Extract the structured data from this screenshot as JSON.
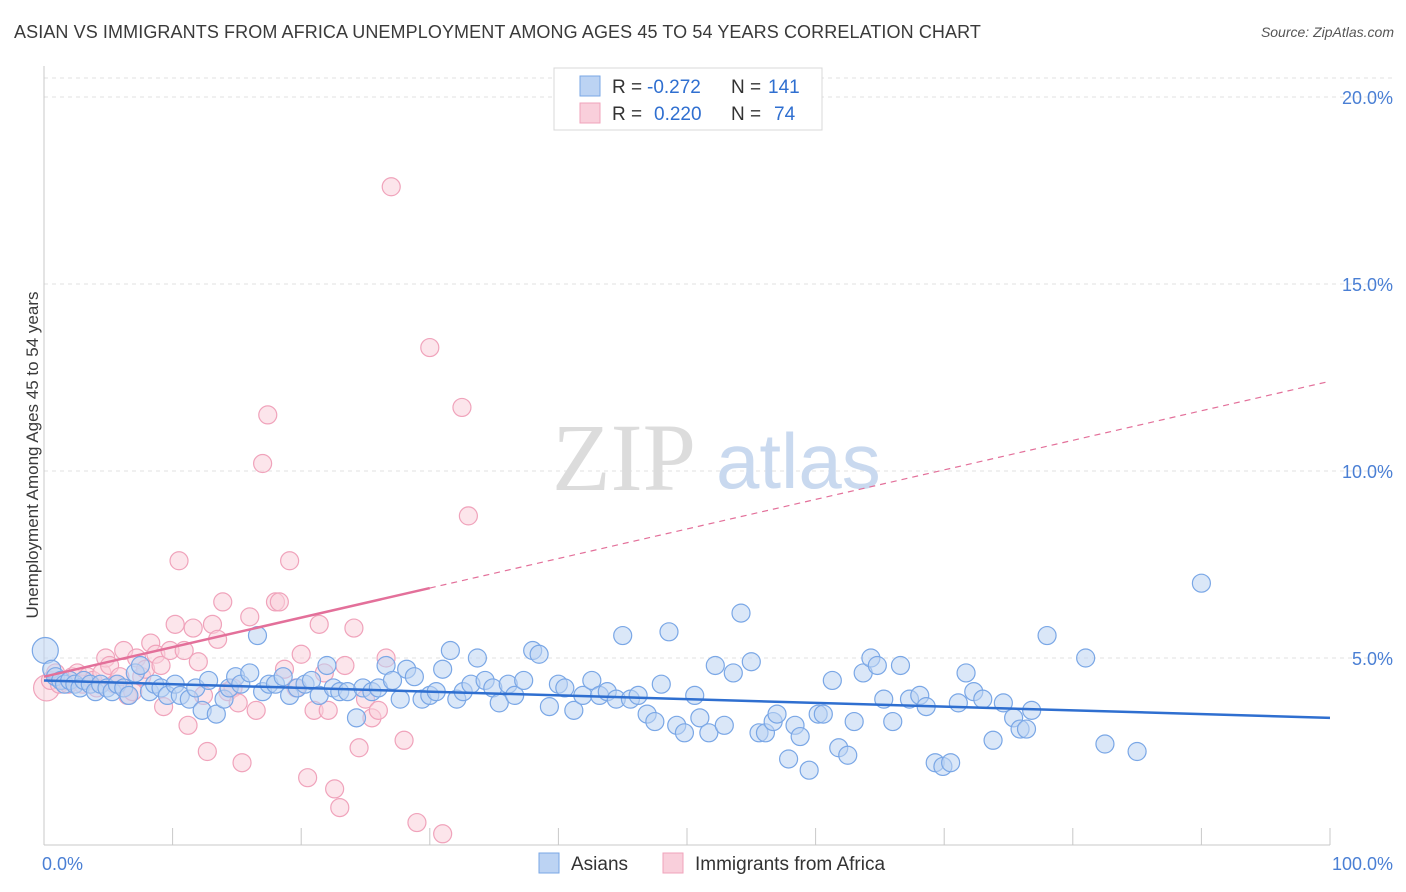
{
  "title": "ASIAN VS IMMIGRANTS FROM AFRICA UNEMPLOYMENT AMONG AGES 45 TO 54 YEARS CORRELATION CHART",
  "source": "Source: ZipAtlas.com",
  "watermark": {
    "zip": "ZIP",
    "atlas": "atlas"
  },
  "chart_data": {
    "type": "scatter",
    "title": "ASIAN VS IMMIGRANTS FROM AFRICA UNEMPLOYMENT AMONG AGES 45 TO 54 YEARS CORRELATION CHART",
    "xlabel": "",
    "ylabel": "Unemployment Among Ages 45 to 54 years",
    "xlim": [
      0,
      100
    ],
    "ylim": [
      0,
      20.5
    ],
    "x_tick_labels": {
      "0": "0.0%",
      "100": "100.0%"
    },
    "y_ticks": [
      5,
      10,
      15,
      20
    ],
    "y_tick_labels": [
      "5.0%",
      "10.0%",
      "15.0%",
      "20.0%"
    ],
    "grid": true,
    "legend_position": "top-center",
    "series": [
      {
        "name": "Asians",
        "color": "#7aa7e6",
        "trend_color": "#2f6fd0",
        "R": "-0.272",
        "N": "141",
        "trend": {
          "x0": 0,
          "y0": 4.4,
          "x1": 100,
          "y1": 3.4,
          "dashed_from": null
        },
        "points": [
          [
            0.1,
            5.2
          ],
          [
            0.6,
            4.7
          ],
          [
            0.9,
            4.5
          ],
          [
            1.3,
            4.4
          ],
          [
            1.6,
            4.3
          ],
          [
            2.0,
            4.4
          ],
          [
            2.4,
            4.3
          ],
          [
            2.8,
            4.2
          ],
          [
            3.1,
            4.4
          ],
          [
            3.6,
            4.3
          ],
          [
            4.0,
            4.1
          ],
          [
            4.4,
            4.3
          ],
          [
            4.9,
            4.2
          ],
          [
            5.3,
            4.1
          ],
          [
            5.7,
            4.3
          ],
          [
            6.2,
            4.2
          ],
          [
            6.6,
            4.0
          ],
          [
            7.1,
            4.6
          ],
          [
            7.5,
            4.8
          ],
          [
            8.2,
            4.1
          ],
          [
            8.6,
            4.3
          ],
          [
            9.1,
            4.2
          ],
          [
            9.6,
            4.0
          ],
          [
            10.2,
            4.3
          ],
          [
            10.6,
            4.0
          ],
          [
            11.3,
            3.9
          ],
          [
            11.8,
            4.2
          ],
          [
            12.3,
            3.6
          ],
          [
            12.8,
            4.4
          ],
          [
            13.4,
            3.5
          ],
          [
            14.0,
            3.9
          ],
          [
            14.4,
            4.2
          ],
          [
            14.9,
            4.5
          ],
          [
            15.3,
            4.3
          ],
          [
            16.0,
            4.6
          ],
          [
            16.6,
            5.6
          ],
          [
            17.0,
            4.1
          ],
          [
            17.5,
            4.3
          ],
          [
            18.0,
            4.3
          ],
          [
            18.6,
            4.5
          ],
          [
            19.1,
            4.0
          ],
          [
            19.7,
            4.2
          ],
          [
            20.3,
            4.3
          ],
          [
            20.8,
            4.4
          ],
          [
            21.4,
            4.0
          ],
          [
            22.0,
            4.8
          ],
          [
            22.5,
            4.2
          ],
          [
            23.0,
            4.1
          ],
          [
            23.6,
            4.1
          ],
          [
            24.3,
            3.4
          ],
          [
            24.8,
            4.2
          ],
          [
            25.5,
            4.1
          ],
          [
            26.0,
            4.2
          ],
          [
            26.6,
            4.8
          ],
          [
            27.1,
            4.4
          ],
          [
            27.7,
            3.9
          ],
          [
            28.2,
            4.7
          ],
          [
            28.8,
            4.5
          ],
          [
            29.4,
            3.9
          ],
          [
            30.0,
            4.0
          ],
          [
            30.5,
            4.1
          ],
          [
            31.0,
            4.7
          ],
          [
            31.6,
            5.2
          ],
          [
            32.1,
            3.9
          ],
          [
            32.6,
            4.1
          ],
          [
            33.2,
            4.3
          ],
          [
            33.7,
            5.0
          ],
          [
            34.3,
            4.4
          ],
          [
            34.9,
            4.2
          ],
          [
            35.4,
            3.8
          ],
          [
            36.1,
            4.3
          ],
          [
            36.6,
            4.0
          ],
          [
            37.3,
            4.4
          ],
          [
            38.0,
            5.2
          ],
          [
            38.5,
            5.1
          ],
          [
            39.3,
            3.7
          ],
          [
            40.0,
            4.3
          ],
          [
            40.5,
            4.2
          ],
          [
            41.2,
            3.6
          ],
          [
            41.9,
            4.0
          ],
          [
            42.6,
            4.4
          ],
          [
            43.2,
            4.0
          ],
          [
            43.8,
            4.1
          ],
          [
            44.5,
            3.9
          ],
          [
            45.0,
            5.6
          ],
          [
            45.6,
            3.9
          ],
          [
            46.2,
            4.0
          ],
          [
            46.9,
            3.5
          ],
          [
            47.5,
            3.3
          ],
          [
            48.0,
            4.3
          ],
          [
            48.6,
            5.7
          ],
          [
            49.2,
            3.2
          ],
          [
            49.8,
            3.0
          ],
          [
            50.6,
            4.0
          ],
          [
            51.0,
            3.4
          ],
          [
            51.7,
            3.0
          ],
          [
            52.2,
            4.8
          ],
          [
            52.9,
            3.2
          ],
          [
            53.6,
            4.6
          ],
          [
            54.2,
            6.2
          ],
          [
            55.0,
            4.9
          ],
          [
            55.6,
            3.0
          ],
          [
            56.1,
            3.0
          ],
          [
            56.7,
            3.3
          ],
          [
            57.0,
            3.5
          ],
          [
            57.9,
            2.3
          ],
          [
            58.4,
            3.2
          ],
          [
            58.8,
            2.9
          ],
          [
            59.5,
            2.0
          ],
          [
            60.2,
            3.5
          ],
          [
            60.6,
            3.5
          ],
          [
            61.3,
            4.4
          ],
          [
            61.8,
            2.6
          ],
          [
            62.5,
            2.4
          ],
          [
            63.0,
            3.3
          ],
          [
            63.7,
            4.6
          ],
          [
            64.3,
            5.0
          ],
          [
            64.8,
            4.8
          ],
          [
            65.3,
            3.9
          ],
          [
            66.0,
            3.3
          ],
          [
            66.6,
            4.8
          ],
          [
            67.3,
            3.9
          ],
          [
            68.1,
            4.0
          ],
          [
            68.6,
            3.7
          ],
          [
            69.3,
            2.2
          ],
          [
            69.9,
            2.1
          ],
          [
            70.5,
            2.2
          ],
          [
            71.1,
            3.8
          ],
          [
            71.7,
            4.6
          ],
          [
            72.3,
            4.1
          ],
          [
            73.0,
            3.9
          ],
          [
            73.8,
            2.8
          ],
          [
            74.6,
            3.8
          ],
          [
            75.4,
            3.4
          ],
          [
            75.9,
            3.1
          ],
          [
            76.4,
            3.1
          ],
          [
            76.8,
            3.6
          ],
          [
            78.0,
            5.6
          ],
          [
            81.0,
            5.0
          ],
          [
            82.5,
            2.7
          ],
          [
            85.0,
            2.5
          ],
          [
            90.0,
            7.0
          ]
        ]
      },
      {
        "name": "Immigrants from Africa",
        "color": "#f0a3bb",
        "trend_color": "#e3709a",
        "R": "0.220",
        "N": "74",
        "trend": {
          "x0": 0,
          "y0": 4.5,
          "x1": 100,
          "y1": 12.4,
          "solid_until": 30
        },
        "points": [
          [
            0.2,
            4.2
          ],
          [
            0.5,
            4.4
          ],
          [
            0.9,
            4.6
          ],
          [
            1.2,
            4.3
          ],
          [
            1.5,
            4.4
          ],
          [
            1.9,
            4.3
          ],
          [
            2.2,
            4.5
          ],
          [
            2.6,
            4.6
          ],
          [
            3.0,
            4.3
          ],
          [
            3.4,
            4.5
          ],
          [
            3.8,
            4.4
          ],
          [
            4.1,
            4.2
          ],
          [
            4.5,
            4.6
          ],
          [
            4.8,
            5.0
          ],
          [
            5.1,
            4.8
          ],
          [
            5.5,
            4.3
          ],
          [
            5.9,
            4.5
          ],
          [
            6.2,
            5.2
          ],
          [
            6.5,
            4.0
          ],
          [
            6.9,
            4.1
          ],
          [
            7.2,
            5.0
          ],
          [
            7.6,
            4.5
          ],
          [
            7.9,
            4.7
          ],
          [
            8.3,
            5.4
          ],
          [
            8.7,
            5.1
          ],
          [
            9.1,
            4.8
          ],
          [
            9.3,
            3.7
          ],
          [
            9.8,
            5.2
          ],
          [
            10.2,
            5.9
          ],
          [
            10.5,
            7.6
          ],
          [
            10.9,
            5.2
          ],
          [
            11.2,
            3.2
          ],
          [
            11.6,
            5.8
          ],
          [
            12.0,
            4.9
          ],
          [
            12.4,
            4.0
          ],
          [
            12.7,
            2.5
          ],
          [
            13.1,
            5.9
          ],
          [
            13.5,
            5.5
          ],
          [
            13.9,
            6.5
          ],
          [
            14.3,
            4.1
          ],
          [
            14.7,
            4.2
          ],
          [
            15.1,
            3.8
          ],
          [
            15.4,
            2.2
          ],
          [
            16.0,
            6.1
          ],
          [
            16.5,
            3.6
          ],
          [
            17.0,
            10.2
          ],
          [
            17.4,
            11.5
          ],
          [
            18.0,
            6.5
          ],
          [
            18.3,
            6.5
          ],
          [
            18.7,
            4.7
          ],
          [
            19.1,
            7.6
          ],
          [
            19.6,
            4.2
          ],
          [
            20.0,
            5.1
          ],
          [
            20.5,
            1.8
          ],
          [
            21.0,
            3.6
          ],
          [
            21.4,
            5.9
          ],
          [
            21.8,
            4.6
          ],
          [
            22.1,
            3.6
          ],
          [
            22.6,
            1.5
          ],
          [
            23.0,
            1.0
          ],
          [
            23.4,
            4.8
          ],
          [
            24.1,
            5.8
          ],
          [
            24.5,
            2.6
          ],
          [
            25.0,
            3.9
          ],
          [
            25.5,
            3.4
          ],
          [
            26.0,
            3.6
          ],
          [
            26.6,
            5.0
          ],
          [
            27.0,
            17.6
          ],
          [
            28.0,
            2.8
          ],
          [
            29.0,
            0.6
          ],
          [
            30.0,
            13.3
          ],
          [
            31.0,
            0.3
          ],
          [
            32.5,
            11.7
          ],
          [
            33.0,
            8.8
          ]
        ]
      }
    ]
  },
  "legend": {
    "rows": [
      {
        "r_label": "R =",
        "r_value": "-0.272",
        "n_label": "N =",
        "n_value": "141"
      },
      {
        "r_label": "R =",
        "r_value": "0.220",
        "n_label": "N =",
        "n_value": "74"
      }
    ]
  },
  "bottom_legend": {
    "items": [
      "Asians",
      "Immigrants from Africa"
    ]
  }
}
